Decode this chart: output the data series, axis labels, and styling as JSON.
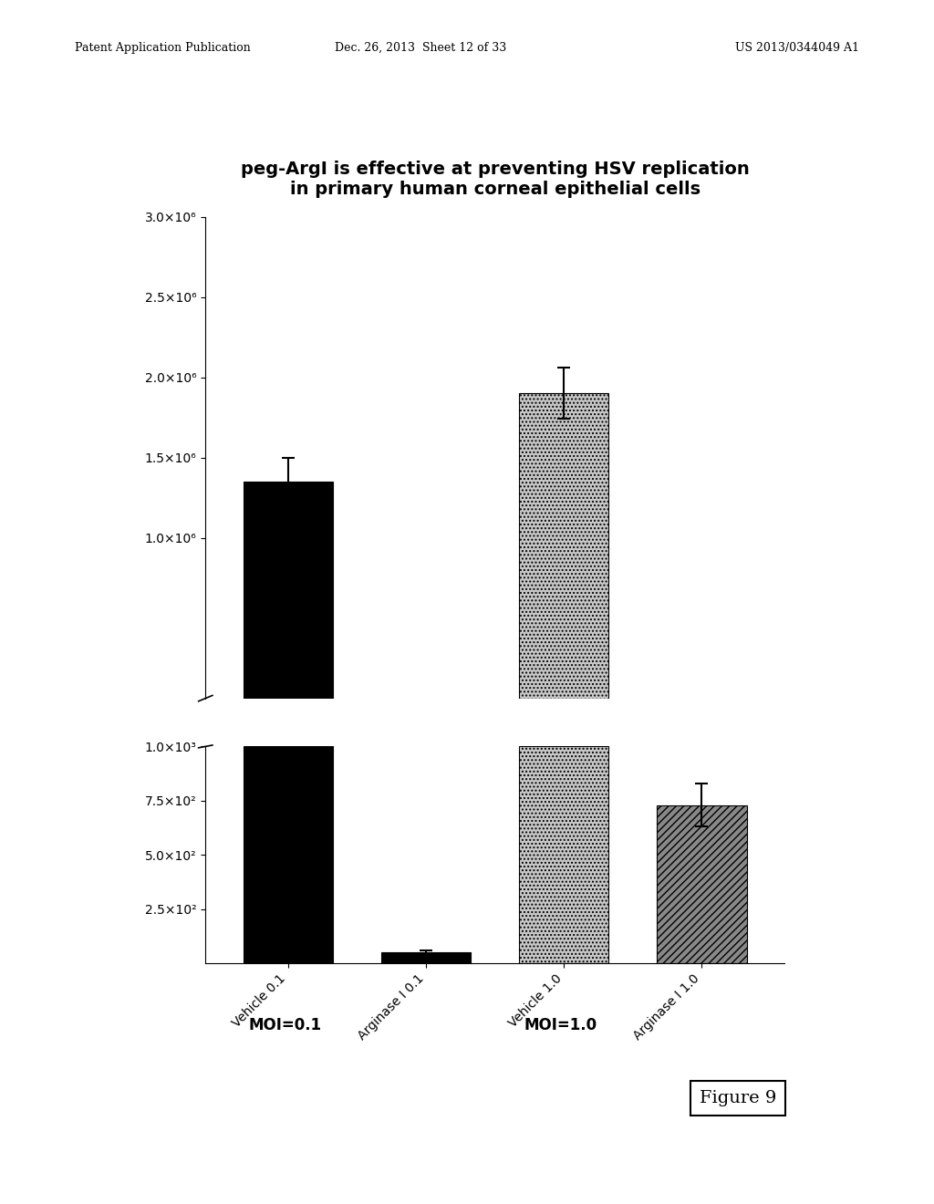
{
  "title_line1": "peg-ArgI is effective at preventing HSV replication",
  "title_line2": "in primary human corneal epithelial cells",
  "categories": [
    "Vehicle 0.1",
    "Arginase I 0.1",
    "Vehicle 1.0",
    "Arginase I 1.0"
  ],
  "values": [
    1350000.0,
    50,
    1900000.0,
    730
  ],
  "errors": [
    150000.0,
    10,
    160000.0,
    100
  ],
  "bar_colors": [
    "black",
    "black",
    "#c8c8c8",
    "#888888"
  ],
  "upper_ylim": [
    0,
    3000000.0
  ],
  "upper_yticks": [
    1000000.0,
    1500000.0,
    2000000.0,
    2500000.0,
    3000000.0
  ],
  "upper_ytick_labels": [
    "1.0×10⁶",
    "1.5×10⁶",
    "2.0×10⁶",
    "2.5×10⁶",
    "3.0×10⁶"
  ],
  "lower_ylim": [
    0,
    1000
  ],
  "lower_yticks": [
    250,
    500,
    750,
    1000
  ],
  "lower_ytick_labels": [
    "2.5×10²",
    "5.0×10²",
    "7.5×10²",
    "1.0×10³"
  ],
  "moi_labels": [
    "MOI=0.1",
    "MOI=1.0"
  ],
  "title_fontsize": 14,
  "tick_fontsize": 10,
  "background_color": "#ffffff",
  "header_left": "Patent Application Publication",
  "header_mid": "Dec. 26, 2013  Sheet 12 of 33",
  "header_right": "US 2013/0344049 A1",
  "figure_label": "Figure 9"
}
